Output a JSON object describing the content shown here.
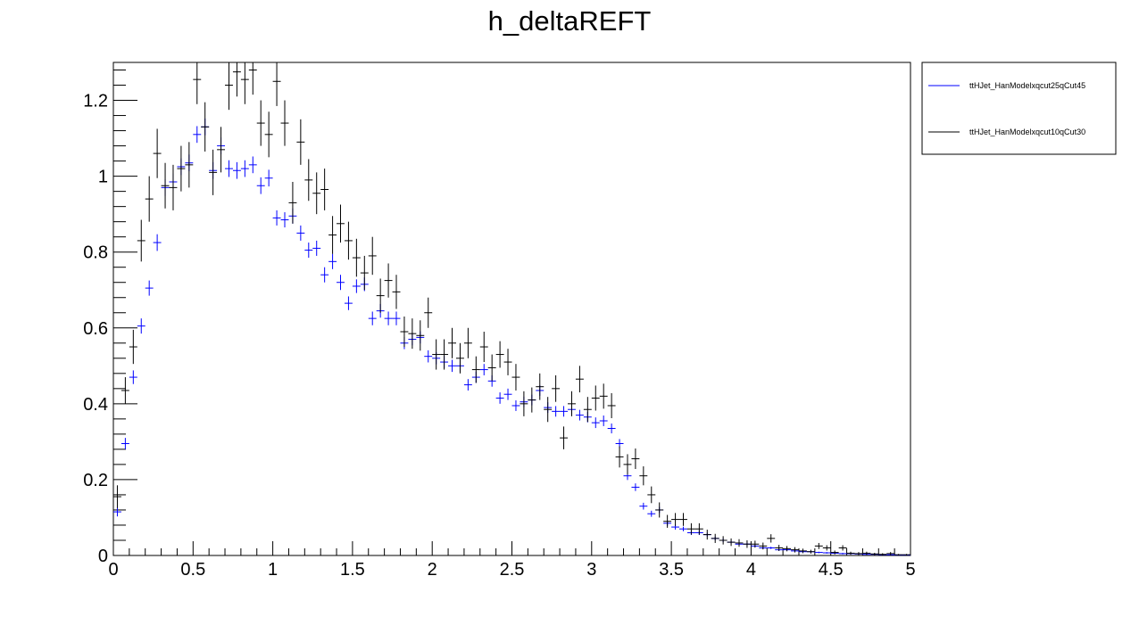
{
  "chart_data": {
    "type": "scatter",
    "title": "h_deltaREFT",
    "xlabel": "",
    "ylabel": "",
    "xlim": [
      0,
      5
    ],
    "ylim": [
      0,
      1.3
    ],
    "x_ticks": [
      "0",
      "0.5",
      "1",
      "1.5",
      "2",
      "2.5",
      "3",
      "3.5",
      "4",
      "4.5",
      "5"
    ],
    "y_ticks": [
      "0",
      "0.2",
      "0.4",
      "0.6",
      "0.8",
      "1",
      "1.2"
    ],
    "grid": false,
    "legend_position": "top-right",
    "bin_width": 0.05,
    "series": [
      {
        "name": "ttHJet_HanModelxqcut25qCut45",
        "color": "#0000ff",
        "x": [
          0.025,
          0.075,
          0.125,
          0.175,
          0.225,
          0.275,
          0.325,
          0.375,
          0.425,
          0.475,
          0.525,
          0.575,
          0.625,
          0.675,
          0.725,
          0.775,
          0.825,
          0.875,
          0.925,
          0.975,
          1.025,
          1.075,
          1.125,
          1.175,
          1.225,
          1.275,
          1.325,
          1.375,
          1.425,
          1.475,
          1.525,
          1.575,
          1.625,
          1.675,
          1.725,
          1.775,
          1.825,
          1.875,
          1.925,
          1.975,
          2.025,
          2.075,
          2.125,
          2.175,
          2.225,
          2.275,
          2.325,
          2.375,
          2.425,
          2.475,
          2.525,
          2.575,
          2.625,
          2.675,
          2.725,
          2.775,
          2.825,
          2.875,
          2.925,
          2.975,
          3.025,
          3.075,
          3.125,
          3.175,
          3.225,
          3.275,
          3.325,
          3.375,
          3.425,
          3.475,
          3.525,
          3.575,
          3.625,
          3.675,
          3.725,
          3.775,
          3.825,
          3.875,
          3.925,
          3.975,
          4.025,
          4.075,
          4.125,
          4.175,
          4.225,
          4.275,
          4.325,
          4.375,
          4.425,
          4.475,
          4.525,
          4.575,
          4.625,
          4.675,
          4.725,
          4.775,
          4.825,
          4.875,
          4.925,
          4.975
        ],
        "y": [
          0.115,
          0.295,
          0.47,
          0.605,
          0.705,
          0.825,
          0.97,
          0.985,
          1.025,
          1.035,
          1.11,
          1.13,
          1.015,
          1.08,
          1.02,
          1.015,
          1.02,
          1.03,
          0.975,
          0.995,
          0.89,
          0.885,
          0.895,
          0.85,
          0.805,
          0.81,
          0.74,
          0.775,
          0.72,
          0.665,
          0.71,
          0.715,
          0.625,
          0.645,
          0.625,
          0.625,
          0.56,
          0.57,
          0.575,
          0.525,
          0.52,
          0.51,
          0.5,
          0.5,
          0.45,
          0.47,
          0.49,
          0.46,
          0.415,
          0.425,
          0.395,
          0.405,
          0.41,
          0.435,
          0.39,
          0.38,
          0.38,
          0.385,
          0.37,
          0.365,
          0.35,
          0.355,
          0.335,
          0.295,
          0.21,
          0.18,
          0.13,
          0.11,
          0.12,
          0.085,
          0.075,
          0.07,
          0.06,
          0.06,
          0.055,
          0.045,
          0.04,
          0.035,
          0.03,
          0.03,
          0.025,
          0.02,
          0.02,
          0.015,
          0.015,
          0.012,
          0.01,
          0.01,
          0.008,
          0.007,
          0.006,
          0.005,
          0.005,
          0.004,
          0.003,
          0.003,
          0.002,
          0.002,
          0.001,
          0.001
        ],
        "yerr": [
          0.012,
          0.015,
          0.018,
          0.02,
          0.02,
          0.022,
          0.022,
          0.022,
          0.022,
          0.022,
          0.022,
          0.022,
          0.022,
          0.022,
          0.022,
          0.022,
          0.022,
          0.022,
          0.022,
          0.022,
          0.02,
          0.02,
          0.02,
          0.02,
          0.02,
          0.02,
          0.02,
          0.02,
          0.02,
          0.018,
          0.018,
          0.018,
          0.018,
          0.018,
          0.018,
          0.018,
          0.016,
          0.016,
          0.016,
          0.016,
          0.016,
          0.016,
          0.016,
          0.016,
          0.015,
          0.015,
          0.015,
          0.015,
          0.015,
          0.015,
          0.014,
          0.014,
          0.014,
          0.014,
          0.014,
          0.014,
          0.014,
          0.014,
          0.014,
          0.014,
          0.014,
          0.014,
          0.013,
          0.012,
          0.011,
          0.01,
          0.009,
          0.008,
          0.008,
          0.007,
          0.007,
          0.006,
          0.006,
          0.006,
          0.005,
          0.005,
          0.005,
          0.004,
          0.004,
          0.004,
          0.004,
          0.003,
          0.003,
          0.003,
          0.003,
          0.003,
          0.002,
          0.002,
          0.002,
          0.002,
          0.002,
          0.002,
          0.002,
          0.001,
          0.001,
          0.001,
          0.001,
          0.001,
          0.001,
          0.001
        ]
      },
      {
        "name": "ttHJet_HanModelxqcut10qCut30",
        "color": "#000000",
        "x": [
          0.025,
          0.075,
          0.125,
          0.175,
          0.225,
          0.275,
          0.325,
          0.375,
          0.425,
          0.475,
          0.525,
          0.575,
          0.625,
          0.675,
          0.725,
          0.775,
          0.825,
          0.875,
          0.925,
          0.975,
          1.025,
          1.075,
          1.125,
          1.175,
          1.225,
          1.275,
          1.325,
          1.375,
          1.425,
          1.475,
          1.525,
          1.575,
          1.625,
          1.675,
          1.725,
          1.775,
          1.825,
          1.875,
          1.925,
          1.975,
          2.025,
          2.075,
          2.125,
          2.175,
          2.225,
          2.275,
          2.325,
          2.375,
          2.425,
          2.475,
          2.525,
          2.575,
          2.625,
          2.675,
          2.725,
          2.775,
          2.825,
          2.875,
          2.925,
          2.975,
          3.025,
          3.075,
          3.125,
          3.175,
          3.225,
          3.275,
          3.325,
          3.375,
          3.425,
          3.475,
          3.525,
          3.575,
          3.625,
          3.675,
          3.725,
          3.775,
          3.825,
          3.875,
          3.925,
          3.975,
          4.025,
          4.075,
          4.125,
          4.175,
          4.225,
          4.275,
          4.325,
          4.375,
          4.425,
          4.475,
          4.525,
          4.575,
          4.625,
          4.675,
          4.725,
          4.775,
          4.825,
          4.875,
          4.925,
          4.975
        ],
        "y": [
          0.155,
          0.435,
          0.55,
          0.83,
          0.94,
          1.06,
          0.975,
          0.97,
          1.02,
          1.03,
          1.255,
          1.13,
          1.01,
          1.07,
          1.24,
          1.275,
          1.255,
          1.28,
          1.14,
          1.11,
          1.25,
          1.14,
          0.93,
          1.09,
          0.99,
          0.955,
          0.965,
          0.845,
          0.875,
          0.83,
          0.785,
          0.745,
          0.79,
          0.685,
          0.725,
          0.695,
          0.59,
          0.585,
          0.58,
          0.64,
          0.53,
          0.53,
          0.56,
          0.52,
          0.56,
          0.49,
          0.55,
          0.495,
          0.53,
          0.51,
          0.47,
          0.4,
          0.41,
          0.445,
          0.385,
          0.44,
          0.31,
          0.4,
          0.465,
          0.385,
          0.415,
          0.42,
          0.395,
          0.26,
          0.24,
          0.255,
          0.21,
          0.16,
          0.12,
          0.09,
          0.095,
          0.095,
          0.07,
          0.07,
          0.055,
          0.045,
          0.04,
          0.035,
          0.033,
          0.03,
          0.03,
          0.025,
          0.045,
          0.02,
          0.018,
          0.015,
          0.012,
          0.01,
          0.025,
          0.02,
          0.008,
          0.02,
          0.006,
          0.005,
          0.006,
          0.004,
          0.003,
          0.005,
          0.002,
          0.002
        ],
        "yerr": [
          0.03,
          0.035,
          0.045,
          0.055,
          0.06,
          0.065,
          0.06,
          0.06,
          0.06,
          0.06,
          0.065,
          0.065,
          0.06,
          0.06,
          0.065,
          0.065,
          0.065,
          0.065,
          0.06,
          0.06,
          0.065,
          0.06,
          0.055,
          0.06,
          0.055,
          0.055,
          0.055,
          0.05,
          0.05,
          0.05,
          0.05,
          0.045,
          0.05,
          0.045,
          0.045,
          0.045,
          0.04,
          0.04,
          0.04,
          0.04,
          0.04,
          0.04,
          0.04,
          0.04,
          0.04,
          0.035,
          0.04,
          0.035,
          0.035,
          0.035,
          0.035,
          0.033,
          0.033,
          0.035,
          0.033,
          0.035,
          0.03,
          0.033,
          0.035,
          0.033,
          0.033,
          0.033,
          0.033,
          0.028,
          0.027,
          0.027,
          0.025,
          0.022,
          0.02,
          0.017,
          0.017,
          0.017,
          0.015,
          0.015,
          0.013,
          0.012,
          0.011,
          0.01,
          0.01,
          0.01,
          0.009,
          0.009,
          0.011,
          0.008,
          0.007,
          0.007,
          0.006,
          0.005,
          0.008,
          0.007,
          0.005,
          0.007,
          0.004,
          0.004,
          0.004,
          0.003,
          0.003,
          0.004,
          0.002,
          0.002
        ]
      }
    ]
  }
}
